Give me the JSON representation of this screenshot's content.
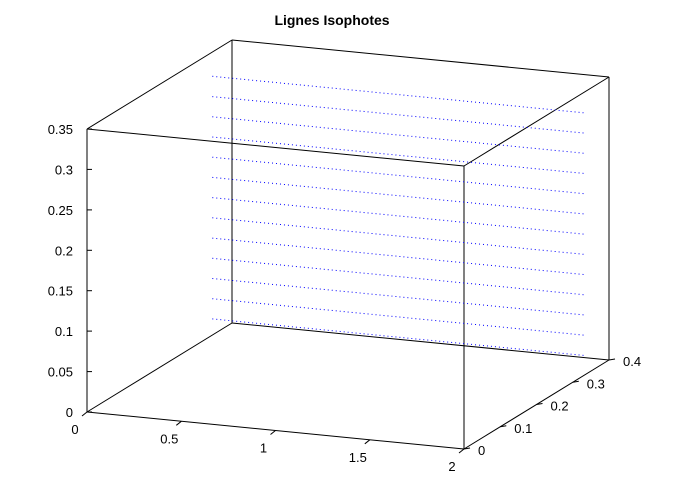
{
  "chart_data": {
    "type": "line",
    "view": "3d",
    "title": "Lignes Isophotes",
    "xlabel": "",
    "ylabel": "",
    "zlabel": "",
    "xlim": [
      0,
      2
    ],
    "ylim": [
      0,
      0.4
    ],
    "zlim": [
      0,
      0.35
    ],
    "x_ticks": [
      "0",
      "0.5",
      "1",
      "1.5",
      "2"
    ],
    "x_tick_values": [
      0,
      0.5,
      1,
      1.5,
      2
    ],
    "y_ticks": [
      "0",
      "0.1",
      "0.2",
      "0.3",
      "0.4"
    ],
    "y_tick_values": [
      0,
      0.1,
      0.2,
      0.3,
      0.4
    ],
    "z_ticks": [
      "0",
      "0.05",
      "0.1",
      "0.15",
      "0.2",
      "0.25",
      "0.3",
      "0.35"
    ],
    "z_tick_values": [
      0,
      0.05,
      0.1,
      0.15,
      0.2,
      0.25,
      0.3,
      0.35
    ],
    "grid": false,
    "line_style": "dotted",
    "line_color": "#0000ff",
    "series": [
      {
        "x": [
          0.03,
          2.0
        ],
        "y": [
          0.33,
          0.33
        ],
        "z": [
          0.025,
          0.025
        ]
      },
      {
        "x": [
          0.03,
          2.0
        ],
        "y": [
          0.33,
          0.33
        ],
        "z": [
          0.05,
          0.05
        ]
      },
      {
        "x": [
          0.03,
          2.0
        ],
        "y": [
          0.33,
          0.33
        ],
        "z": [
          0.075,
          0.075
        ]
      },
      {
        "x": [
          0.03,
          2.0
        ],
        "y": [
          0.33,
          0.33
        ],
        "z": [
          0.1,
          0.1
        ]
      },
      {
        "x": [
          0.03,
          2.0
        ],
        "y": [
          0.33,
          0.33
        ],
        "z": [
          0.125,
          0.125
        ]
      },
      {
        "x": [
          0.03,
          2.0
        ],
        "y": [
          0.33,
          0.33
        ],
        "z": [
          0.15,
          0.15
        ]
      },
      {
        "x": [
          0.03,
          2.0
        ],
        "y": [
          0.33,
          0.33
        ],
        "z": [
          0.175,
          0.175
        ]
      },
      {
        "x": [
          0.03,
          2.0
        ],
        "y": [
          0.33,
          0.33
        ],
        "z": [
          0.2,
          0.2
        ]
      },
      {
        "x": [
          0.03,
          2.0
        ],
        "y": [
          0.33,
          0.33
        ],
        "z": [
          0.225,
          0.225
        ]
      },
      {
        "x": [
          0.03,
          2.0
        ],
        "y": [
          0.33,
          0.33
        ],
        "z": [
          0.25,
          0.25
        ]
      },
      {
        "x": [
          0.03,
          2.0
        ],
        "y": [
          0.33,
          0.33
        ],
        "z": [
          0.275,
          0.275
        ]
      },
      {
        "x": [
          0.03,
          2.0
        ],
        "y": [
          0.33,
          0.33
        ],
        "z": [
          0.3,
          0.3
        ]
      },
      {
        "x": [
          0.03,
          2.0
        ],
        "y": [
          0.33,
          0.33
        ],
        "z": [
          0.325,
          0.325
        ]
      }
    ]
  }
}
